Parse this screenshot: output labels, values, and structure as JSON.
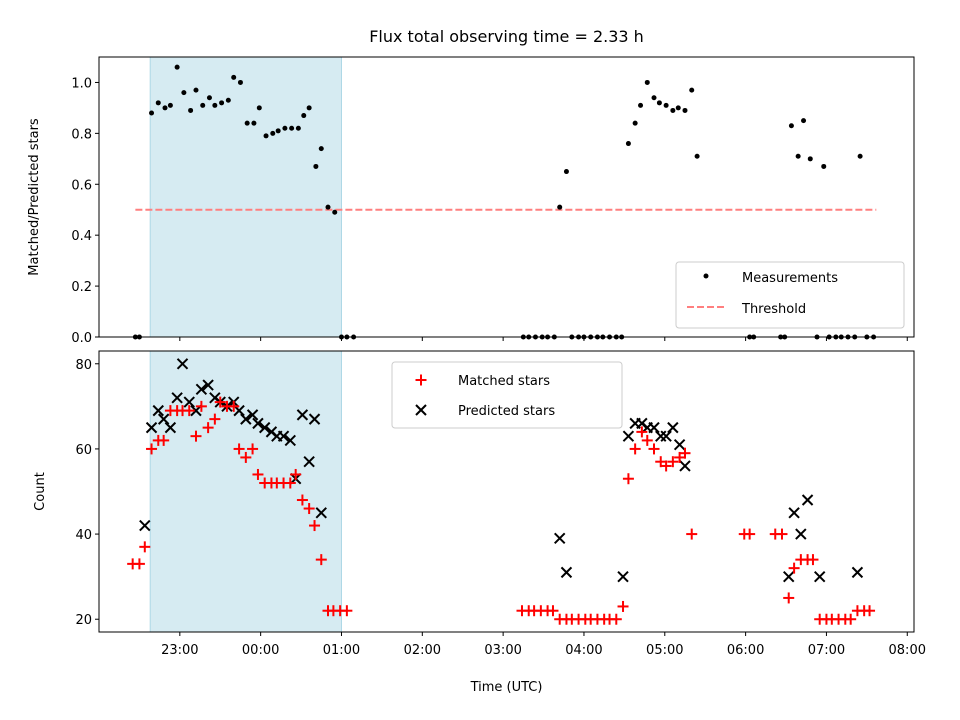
{
  "chart_data": [
    {
      "type": "scatter",
      "title": "Flux total observing time = 2.33 h",
      "ylabel": "Matched/Predicted stars",
      "ylim": [
        0,
        1.1
      ],
      "yticks": [
        "0.0",
        "0.2",
        "0.4",
        "0.6",
        "0.8",
        "1.0"
      ],
      "xlim": [
        "22:00",
        "08:05"
      ],
      "highlight_span": [
        "22:38",
        "01:00"
      ],
      "highlight_color": "#add8e6",
      "legend": {
        "placement": "lower right",
        "entries": [
          "Measurements",
          "Threshold"
        ]
      },
      "series": [
        {
          "name": "Measurements",
          "color": "#000000",
          "points": [
            [
              "22:27",
              0
            ],
            [
              "22:30",
              0
            ],
            [
              "22:39",
              0.88
            ],
            [
              "22:44",
              0.92
            ],
            [
              "22:49",
              0.9
            ],
            [
              "22:53",
              0.91
            ],
            [
              "22:58",
              1.06
            ],
            [
              "23:03",
              0.96
            ],
            [
              "23:08",
              0.89
            ],
            [
              "23:12",
              0.97
            ],
            [
              "23:17",
              0.91
            ],
            [
              "23:22",
              0.94
            ],
            [
              "23:26",
              0.91
            ],
            [
              "23:31",
              0.92
            ],
            [
              "23:36",
              0.93
            ],
            [
              "23:40",
              1.02
            ],
            [
              "23:45",
              1.0
            ],
            [
              "23:50",
              0.84
            ],
            [
              "23:55",
              0.84
            ],
            [
              "23:59",
              0.9
            ],
            [
              "00:04",
              0.79
            ],
            [
              "00:09",
              0.8
            ],
            [
              "00:13",
              0.81
            ],
            [
              "00:18",
              0.82
            ],
            [
              "00:23",
              0.82
            ],
            [
              "00:28",
              0.82
            ],
            [
              "00:32",
              0.87
            ],
            [
              "00:36",
              0.9
            ],
            [
              "00:41",
              0.67
            ],
            [
              "00:45",
              0.74
            ],
            [
              "00:50",
              0.51
            ],
            [
              "00:55",
              0.49
            ],
            [
              "01:00",
              0
            ],
            [
              "01:04",
              0
            ],
            [
              "01:09",
              0
            ],
            [
              "03:15",
              0
            ],
            [
              "03:19",
              0
            ],
            [
              "03:24",
              0
            ],
            [
              "03:29",
              0
            ],
            [
              "03:33",
              0
            ],
            [
              "03:38",
              0
            ],
            [
              "03:42",
              0.51
            ],
            [
              "03:47",
              0.65
            ],
            [
              "03:51",
              0
            ],
            [
              "03:56",
              0
            ],
            [
              "04:00",
              0
            ],
            [
              "04:05",
              0
            ],
            [
              "04:10",
              0
            ],
            [
              "04:14",
              0
            ],
            [
              "04:19",
              0
            ],
            [
              "04:24",
              0
            ],
            [
              "04:28",
              0
            ],
            [
              "04:33",
              0.76
            ],
            [
              "04:38",
              0.84
            ],
            [
              "04:42",
              0.91
            ],
            [
              "04:47",
              1.0
            ],
            [
              "04:52",
              0.94
            ],
            [
              "04:56",
              0.92
            ],
            [
              "05:01",
              0.91
            ],
            [
              "05:06",
              0.89
            ],
            [
              "05:10",
              0.9
            ],
            [
              "05:15",
              0.89
            ],
            [
              "05:20",
              0.97
            ],
            [
              "05:24",
              0.71
            ],
            [
              "06:03",
              0
            ],
            [
              "06:06",
              0
            ],
            [
              "06:26",
              0
            ],
            [
              "06:29",
              0
            ],
            [
              "06:34",
              0.83
            ],
            [
              "06:39",
              0.71
            ],
            [
              "06:43",
              0.85
            ],
            [
              "06:48",
              0.7
            ],
            [
              "06:53",
              0
            ],
            [
              "06:58",
              0.67
            ],
            [
              "07:02",
              0
            ],
            [
              "07:07",
              0
            ],
            [
              "07:11",
              0
            ],
            [
              "07:16",
              0
            ],
            [
              "07:21",
              0
            ],
            [
              "07:25",
              0.71
            ],
            [
              "07:30",
              0
            ],
            [
              "07:35",
              0
            ]
          ]
        },
        {
          "name": "Threshold",
          "color": "#ff7f7f",
          "style": "dashed",
          "points": [
            [
              "22:27",
              0.5
            ],
            [
              "07:37",
              0.5
            ]
          ]
        }
      ]
    },
    {
      "type": "scatter",
      "xlabel": "Time (UTC)",
      "ylabel": "Count",
      "ylim": [
        17,
        83
      ],
      "yticks": [
        "20",
        "40",
        "60",
        "80"
      ],
      "xticks": [
        "23:00",
        "00:00",
        "01:00",
        "02:00",
        "03:00",
        "04:00",
        "05:00",
        "06:00",
        "07:00",
        "08:00"
      ],
      "xlim": [
        "22:00",
        "08:05"
      ],
      "highlight_span": [
        "22:38",
        "01:00"
      ],
      "highlight_color": "#add8e6",
      "legend": {
        "placement": "upper center",
        "entries": [
          "Matched stars",
          "Predicted stars"
        ]
      },
      "series": [
        {
          "name": "Matched stars",
          "marker": "+",
          "color": "#ff0000",
          "points": [
            [
              "22:25",
              33
            ],
            [
              "22:30",
              33
            ],
            [
              "22:34",
              37
            ],
            [
              "22:39",
              60
            ],
            [
              "22:44",
              62
            ],
            [
              "22:48",
              62
            ],
            [
              "22:53",
              69
            ],
            [
              "22:58",
              69
            ],
            [
              "23:02",
              69
            ],
            [
              "23:07",
              69
            ],
            [
              "23:12",
              63
            ],
            [
              "23:16",
              70
            ],
            [
              "23:21",
              65
            ],
            [
              "23:26",
              67
            ],
            [
              "23:30",
              71
            ],
            [
              "23:35",
              70
            ],
            [
              "23:40",
              70
            ],
            [
              "23:44",
              60
            ],
            [
              "23:49",
              58
            ],
            [
              "23:54",
              60
            ],
            [
              "23:58",
              54
            ],
            [
              "00:03",
              52
            ],
            [
              "00:08",
              52
            ],
            [
              "00:12",
              52
            ],
            [
              "00:17",
              52
            ],
            [
              "00:22",
              52
            ],
            [
              "00:26",
              54
            ],
            [
              "00:31",
              48
            ],
            [
              "00:36",
              46
            ],
            [
              "00:40",
              42
            ],
            [
              "00:45",
              34
            ],
            [
              "00:50",
              22
            ],
            [
              "00:54",
              22
            ],
            [
              "00:59",
              22
            ],
            [
              "01:04",
              22
            ],
            [
              "03:14",
              22
            ],
            [
              "03:19",
              22
            ],
            [
              "03:23",
              22
            ],
            [
              "03:28",
              22
            ],
            [
              "03:33",
              22
            ],
            [
              "03:37",
              22
            ],
            [
              "03:42",
              20
            ],
            [
              "03:47",
              20
            ],
            [
              "03:51",
              20
            ],
            [
              "03:56",
              20
            ],
            [
              "04:01",
              20
            ],
            [
              "04:05",
              20
            ],
            [
              "04:10",
              20
            ],
            [
              "04:15",
              20
            ],
            [
              "04:19",
              20
            ],
            [
              "04:24",
              20
            ],
            [
              "04:29",
              23
            ],
            [
              "04:33",
              53
            ],
            [
              "04:38",
              60
            ],
            [
              "04:43",
              64
            ],
            [
              "04:47",
              62
            ],
            [
              "04:52",
              60
            ],
            [
              "04:57",
              57
            ],
            [
              "05:01",
              56
            ],
            [
              "05:06",
              57
            ],
            [
              "05:11",
              58
            ],
            [
              "05:15",
              59
            ],
            [
              "05:20",
              40
            ],
            [
              "05:59",
              40
            ],
            [
              "06:03",
              40
            ],
            [
              "06:22",
              40
            ],
            [
              "06:27",
              40
            ],
            [
              "06:32",
              25
            ],
            [
              "06:36",
              32
            ],
            [
              "06:41",
              34
            ],
            [
              "06:46",
              34
            ],
            [
              "06:50",
              34
            ],
            [
              "06:55",
              20
            ],
            [
              "07:00",
              20
            ],
            [
              "07:04",
              20
            ],
            [
              "07:09",
              20
            ],
            [
              "07:14",
              20
            ],
            [
              "07:18",
              20
            ],
            [
              "07:23",
              22
            ],
            [
              "07:28",
              22
            ],
            [
              "07:32",
              22
            ]
          ]
        },
        {
          "name": "Predicted stars",
          "marker": "x",
          "color": "#000000",
          "points": [
            [
              "22:34",
              42
            ],
            [
              "22:39",
              65
            ],
            [
              "22:44",
              69
            ],
            [
              "22:48",
              67
            ],
            [
              "22:53",
              65
            ],
            [
              "22:58",
              72
            ],
            [
              "23:02",
              80
            ],
            [
              "23:07",
              71
            ],
            [
              "23:12",
              69
            ],
            [
              "23:16",
              74
            ],
            [
              "23:21",
              75
            ],
            [
              "23:26",
              72
            ],
            [
              "23:30",
              71
            ],
            [
              "23:35",
              70
            ],
            [
              "23:40",
              71
            ],
            [
              "23:44",
              69
            ],
            [
              "23:49",
              67
            ],
            [
              "23:54",
              68
            ],
            [
              "23:58",
              66
            ],
            [
              "00:03",
              65
            ],
            [
              "00:08",
              64
            ],
            [
              "00:12",
              63
            ],
            [
              "00:17",
              63
            ],
            [
              "00:22",
              62
            ],
            [
              "00:26",
              53
            ],
            [
              "00:31",
              68
            ],
            [
              "00:36",
              57
            ],
            [
              "00:40",
              67
            ],
            [
              "00:45",
              45
            ],
            [
              "03:42",
              39
            ],
            [
              "03:47",
              31
            ],
            [
              "04:29",
              30
            ],
            [
              "04:33",
              63
            ],
            [
              "04:38",
              66
            ],
            [
              "04:43",
              66
            ],
            [
              "04:47",
              65
            ],
            [
              "04:52",
              65
            ],
            [
              "04:57",
              63
            ],
            [
              "05:01",
              63
            ],
            [
              "05:06",
              65
            ],
            [
              "05:11",
              61
            ],
            [
              "05:15",
              56
            ],
            [
              "06:32",
              30
            ],
            [
              "06:36",
              45
            ],
            [
              "06:41",
              40
            ],
            [
              "06:46",
              48
            ],
            [
              "06:55",
              30
            ],
            [
              "07:23",
              31
            ]
          ]
        }
      ]
    }
  ]
}
